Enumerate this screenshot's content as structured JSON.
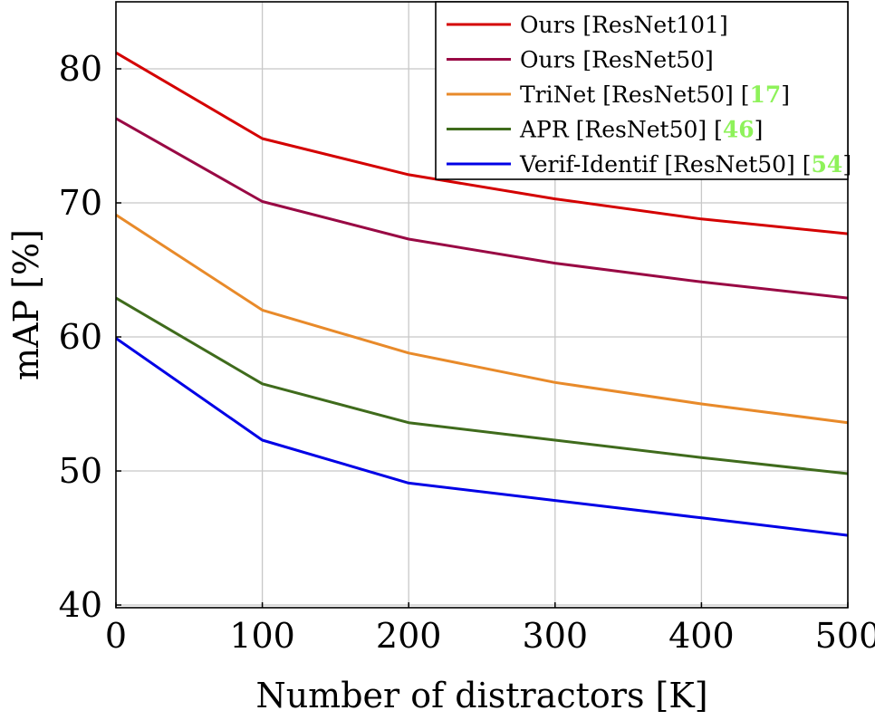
{
  "chart_data": {
    "type": "line",
    "title": "",
    "xlabel": "Number of distractors [K]",
    "ylabel": "mAP [%]",
    "x": [
      0,
      100,
      200,
      300,
      400,
      500
    ],
    "xlim": [
      0,
      500
    ],
    "ylim": [
      39.8,
      85
    ],
    "xticks": [
      0,
      100,
      200,
      300,
      400,
      500
    ],
    "yticks": [
      40,
      50,
      60,
      70,
      80
    ],
    "grid": true,
    "legend_position": "top-right",
    "series": [
      {
        "name": "Ours [ResNet101]",
        "ref": "",
        "color": "#d40000",
        "values": [
          81.2,
          74.8,
          72.1,
          70.3,
          68.8,
          67.7
        ]
      },
      {
        "name": "Ours [ResNet50]",
        "ref": "",
        "color": "#990944",
        "values": [
          76.3,
          70.1,
          67.3,
          65.5,
          64.1,
          62.9
        ]
      },
      {
        "name": "TriNet [ResNet50] [",
        "ref": "17",
        "color": "#e88a2a",
        "values": [
          69.1,
          62.0,
          58.8,
          56.6,
          55.0,
          53.6
        ]
      },
      {
        "name": "APR [ResNet50] [",
        "ref": "46",
        "color": "#3f6b1c",
        "values": [
          62.9,
          56.5,
          53.6,
          52.3,
          51.0,
          49.8
        ]
      },
      {
        "name": "Verif-Identif [ResNet50] [",
        "ref": "54",
        "color": "#0000e6",
        "values": [
          59.9,
          52.3,
          49.1,
          47.8,
          46.5,
          45.2
        ]
      }
    ]
  }
}
